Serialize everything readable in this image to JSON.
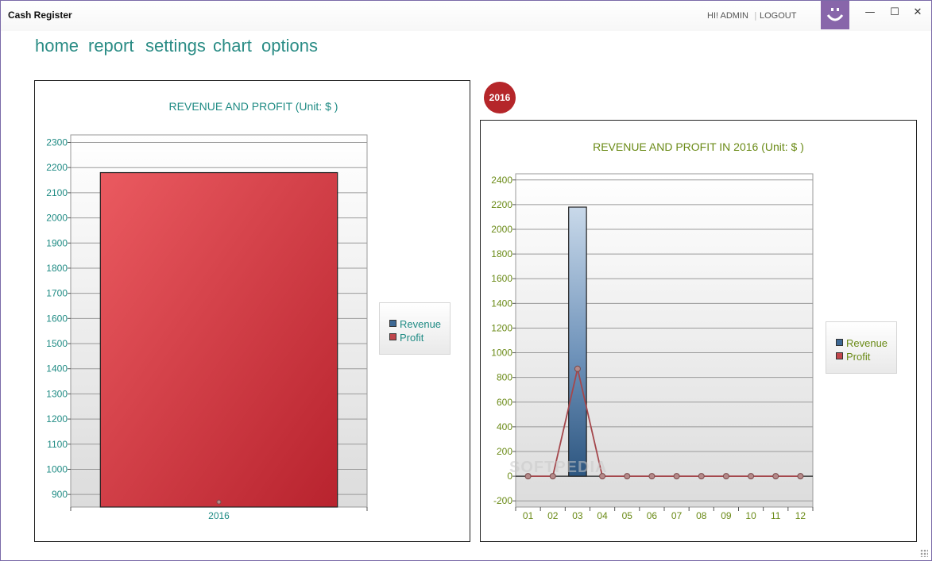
{
  "window": {
    "title": "Cash Register",
    "greeting": "HI! ADMIN",
    "logout_label": "LOGOUT",
    "avatar_icon": "smiley-face-icon",
    "controls": {
      "minimize": "—",
      "maximize": "☐",
      "close": "✕"
    }
  },
  "nav": {
    "items": [
      {
        "label": "home"
      },
      {
        "label": "report"
      },
      {
        "label": "settings"
      },
      {
        "label": "chart"
      },
      {
        "label": "options"
      }
    ]
  },
  "year_badge": "2016",
  "watermark": "SOFTPEDIA",
  "colors": {
    "accent_teal": "#1f8b84",
    "accent_olive": "#6a8a16",
    "revenue_bar_left": "#e0474f",
    "revenue_bar_blue": "#3d6894",
    "profit_line": "#a4474c",
    "badge": "#b5262a"
  },
  "chart_data": [
    {
      "type": "bar",
      "title": "REVENUE AND PROFIT (Unit: $ )",
      "categories": [
        "2016"
      ],
      "series": [
        {
          "name": "Revenue",
          "type": "bar",
          "values": [
            2180
          ]
        },
        {
          "name": "Profit",
          "type": "line",
          "values": [
            870
          ]
        }
      ],
      "ylim": [
        850,
        2330
      ],
      "yticks": [
        900,
        1000,
        1100,
        1200,
        1300,
        1400,
        1500,
        1600,
        1700,
        1800,
        1900,
        2000,
        2100,
        2200,
        2300
      ],
      "legend": [
        "Revenue",
        "Profit"
      ],
      "legend_position": "right",
      "grid": true
    },
    {
      "type": "bar",
      "title": "REVENUE AND PROFIT IN 2016 (Unit: $ )",
      "categories": [
        "01",
        "02",
        "03",
        "04",
        "05",
        "06",
        "07",
        "08",
        "09",
        "10",
        "11",
        "12"
      ],
      "series": [
        {
          "name": "Revenue",
          "type": "bar",
          "values": [
            0,
            0,
            2180,
            0,
            0,
            0,
            0,
            0,
            0,
            0,
            0,
            0
          ]
        },
        {
          "name": "Profit",
          "type": "line",
          "values": [
            0,
            0,
            870,
            0,
            0,
            0,
            0,
            0,
            0,
            0,
            0,
            0
          ]
        }
      ],
      "ylim": [
        -250,
        2450
      ],
      "yticks": [
        -200,
        0,
        200,
        400,
        600,
        800,
        1000,
        1200,
        1400,
        1600,
        1800,
        2000,
        2200,
        2400
      ],
      "legend": [
        "Revenue",
        "Profit"
      ],
      "legend_position": "right",
      "grid": true
    }
  ]
}
